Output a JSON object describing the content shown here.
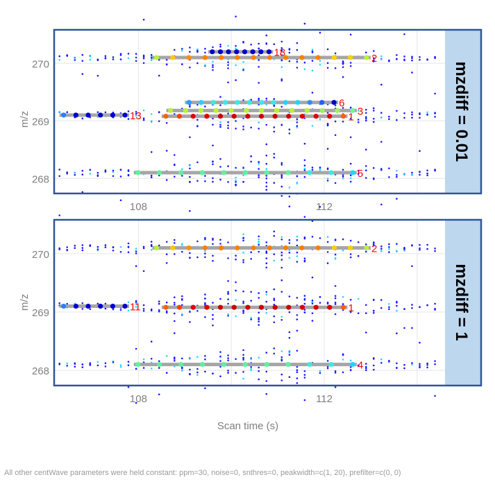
{
  "chart_data": [
    {
      "type": "scatter",
      "title": "",
      "strip_label": "mzdiff = 0.01",
      "xlabel": "",
      "ylabel": "m/z",
      "xlim": [
        106.2,
        114.6
      ],
      "ylim": [
        267.75,
        270.57
      ],
      "x_ticks": [
        108,
        112
      ],
      "x_tick_labels": [
        "108",
        "112"
      ],
      "x_gridlines": [
        108,
        110,
        112,
        114
      ],
      "y_ticks": [
        268,
        269,
        270
      ],
      "y_tick_labels": [
        "268",
        "269",
        "270"
      ],
      "grid": true,
      "traces": [
        {
          "mz": 270.1,
          "xmin": 106.3,
          "xmax": 114.4
        },
        {
          "mz": 269.1,
          "xmin": 106.3,
          "xmax": 114.4
        },
        {
          "mz": 268.1,
          "xmin": 106.3,
          "xmax": 114.4
        }
      ],
      "peaks": [
        {
          "id": "2",
          "label": "2",
          "mz": 270.1,
          "rtmin": 108.3,
          "rtmax": 113.0,
          "colors": [
            "#b8f23a",
            "#ffc800",
            "#ff9000",
            "#ff8000",
            "#ff8000",
            "#ff8000",
            "#ff8000",
            "#ff8000",
            "#ff8000",
            "#ff8000",
            "#ff8000",
            "#ffd000",
            "#ffd000",
            "#b8f23a"
          ]
        },
        {
          "id": "18",
          "label": "18",
          "mz": 270.2,
          "rtmin": 109.5,
          "rtmax": 110.9,
          "colors": [
            "#0000cc",
            "#0000cc",
            "#0000cc",
            "#0000cc",
            "#0000cc",
            "#0000cc",
            "#0000cc",
            "#0000cc"
          ]
        },
        {
          "id": "6",
          "label": "6",
          "mz": 269.32,
          "rtmin": 109.0,
          "rtmax": 112.3,
          "colors": [
            "#2aa0ff",
            "#2ad0ff",
            "#40e8e0",
            "#40e8e0",
            "#40e8e0",
            "#40e8e0",
            "#40e8e0",
            "#40e8e0",
            "#2ad0ff",
            "#2ad0ff",
            "#2a90ff",
            "#2060ff",
            "#0000cc"
          ]
        },
        {
          "id": "3",
          "label": "3",
          "mz": 269.18,
          "rtmin": 108.6,
          "rtmax": 112.7,
          "colors": [
            "#b8f23a",
            "#b8f23a",
            "#b8f23a",
            "#b8f23a",
            "#b8f23a",
            "#b8f23a",
            "#b8f23a",
            "#b8f23a",
            "#b8f23a",
            "#b8f23a",
            "#a0f060",
            "#a0f060",
            "#80f090"
          ]
        },
        {
          "id": "1",
          "label": "1",
          "mz": 269.08,
          "rtmin": 108.5,
          "rtmax": 112.5,
          "colors": [
            "#ff6000",
            "#ff4000",
            "#e00000",
            "#e00000",
            "#cc0000",
            "#cc0000",
            "#cc0000",
            "#cc0000",
            "#cc0000",
            "#cc0000",
            "#dd0000",
            "#e00000",
            "#e00000",
            "#ff6000"
          ]
        },
        {
          "id": "13",
          "label": "13",
          "mz": 269.1,
          "rtmin": 106.3,
          "rtmax": 107.8,
          "colors": [
            "#2a80ff",
            "#0000cc",
            "#0000cc",
            "#0000cc",
            "#0000cc",
            "#0000cc"
          ]
        },
        {
          "id": "5",
          "label": "5",
          "mz": 268.1,
          "rtmin": 107.9,
          "rtmax": 112.7,
          "colors": [
            "#60f0a0",
            "#60f0a0",
            "#60f0a0",
            "#60f0a0",
            "#60f0a0",
            "#60f0a0",
            "#60f0a0",
            "#60f0a0",
            "#40e8e0",
            "#40e8e0",
            "#2ad0ff"
          ]
        }
      ]
    },
    {
      "type": "scatter",
      "title": "",
      "strip_label": "mzdiff = 1",
      "xlabel": "Scan time (s)",
      "ylabel": "m/z",
      "xlim": [
        106.2,
        114.6
      ],
      "ylim": [
        267.75,
        270.57
      ],
      "x_ticks": [
        108,
        112
      ],
      "x_tick_labels": [
        "108",
        "112"
      ],
      "x_gridlines": [
        108,
        110,
        112,
        114
      ],
      "y_ticks": [
        268,
        269,
        270
      ],
      "y_tick_labels": [
        "268",
        "269",
        "270"
      ],
      "grid": true,
      "traces": [
        {
          "mz": 270.1,
          "xmin": 106.3,
          "xmax": 114.4
        },
        {
          "mz": 269.1,
          "xmin": 106.3,
          "xmax": 114.4
        },
        {
          "mz": 268.1,
          "xmin": 106.3,
          "xmax": 114.4
        }
      ],
      "peaks": [
        {
          "id": "2",
          "label": "2",
          "mz": 270.1,
          "rtmin": 108.3,
          "rtmax": 113.0,
          "colors": [
            "#b8f23a",
            "#ffc800",
            "#ff9000",
            "#ff8000",
            "#ff8000",
            "#ff8000",
            "#ff8000",
            "#ff8000",
            "#ff8000",
            "#ff8000",
            "#ff8000",
            "#ffd000",
            "#ffd000",
            "#b8f23a"
          ]
        },
        {
          "id": "11",
          "label": "11",
          "mz": 269.1,
          "rtmin": 106.3,
          "rtmax": 107.8,
          "colors": [
            "#2a80ff",
            "#0000cc",
            "#0000cc",
            "#0000cc",
            "#0000cc",
            "#0000cc"
          ]
        },
        {
          "id": "1",
          "label": "1",
          "mz": 269.08,
          "rtmin": 108.5,
          "rtmax": 112.5,
          "colors": [
            "#ff6000",
            "#ff4000",
            "#e00000",
            "#e00000",
            "#cc0000",
            "#cc0000",
            "#cc0000",
            "#cc0000",
            "#cc0000",
            "#cc0000",
            "#dd0000",
            "#e00000",
            "#e00000",
            "#ff6000"
          ]
        },
        {
          "id": "4",
          "label": "4",
          "mz": 268.1,
          "rtmin": 107.9,
          "rtmax": 112.7,
          "colors": [
            "#60f0a0",
            "#60f0a0",
            "#60f0a0",
            "#60f0a0",
            "#60f0a0",
            "#60f0a0",
            "#60f0a0",
            "#60f0a0",
            "#40e8e0",
            "#40e8e0",
            "#2ad0ff"
          ]
        }
      ]
    }
  ],
  "x_axis_title": "Scan time (s)",
  "y_axis_title": "m/z",
  "footnote": "All other centWave parameters were held constant: ppm=30, noise=0, snthres=0, peakwidth=c(1, 20),  prefilter=c(0, 0)",
  "colors": {
    "panel_border": "#2f5597",
    "strip_fill": "#bdd7ee",
    "peak_bar": "#a6a6a6",
    "peak_label": "#ff0000",
    "raw_point": "#1a1aff",
    "grid": "#e6e6e6"
  }
}
